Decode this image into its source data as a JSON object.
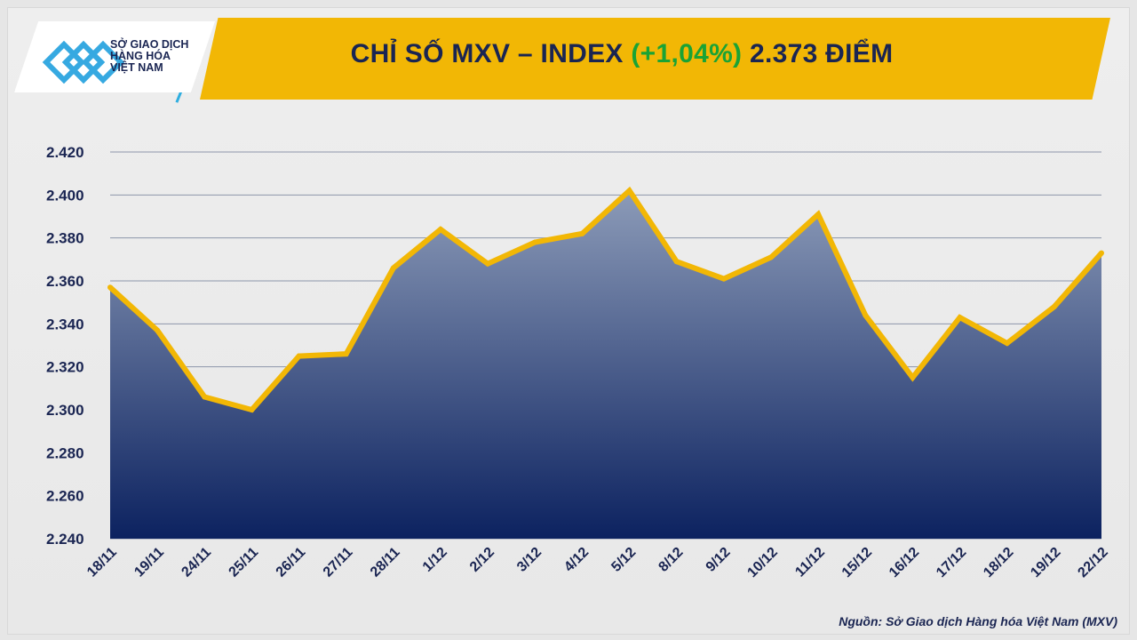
{
  "header": {
    "logo_text": [
      "SỞ GIAO DỊCH",
      "HÀNG HÓA",
      "VIỆT NAM"
    ],
    "title_prefix": "CHỈ SỐ MXV – INDEX ",
    "title_change": "(+1,04%)",
    "title_suffix": " 2.373 ĐIỂM"
  },
  "source": "Nguồn: Sở Giao dịch Hàng hóa Việt Nam (MXV)",
  "colors": {
    "line": "#f2b705",
    "area_top": "#8c9bb8",
    "area_bottom": "#0c2260",
    "title": "#1a2552",
    "positive": "#1aa335",
    "banner": "#f2b705"
  },
  "chart_data": {
    "type": "area",
    "title": "CHỈ SỐ MXV – INDEX (+1,04%) 2.373 ĐIỂM",
    "categories": [
      "18/11",
      "19/11",
      "24/11",
      "25/11",
      "26/11",
      "27/11",
      "28/11",
      "1/12",
      "2/12",
      "3/12",
      "4/12",
      "5/12",
      "8/12",
      "9/12",
      "10/12",
      "11/12",
      "15/12",
      "16/12",
      "17/12",
      "18/12",
      "19/12",
      "22/12"
    ],
    "values": [
      2357,
      2337,
      2306,
      2300,
      2325,
      2326,
      2366,
      2384,
      2368,
      2378,
      2382,
      2402,
      2369,
      2361,
      2371,
      2391,
      2344,
      2315,
      2343,
      2331,
      2348,
      2373
    ],
    "ylim": [
      2240,
      2420
    ],
    "yticks": [
      "2.240",
      "2.260",
      "2.280",
      "2.300",
      "2.320",
      "2.340",
      "2.360",
      "2.380",
      "2.400",
      "2.420"
    ],
    "grid": true,
    "legend": "none"
  }
}
